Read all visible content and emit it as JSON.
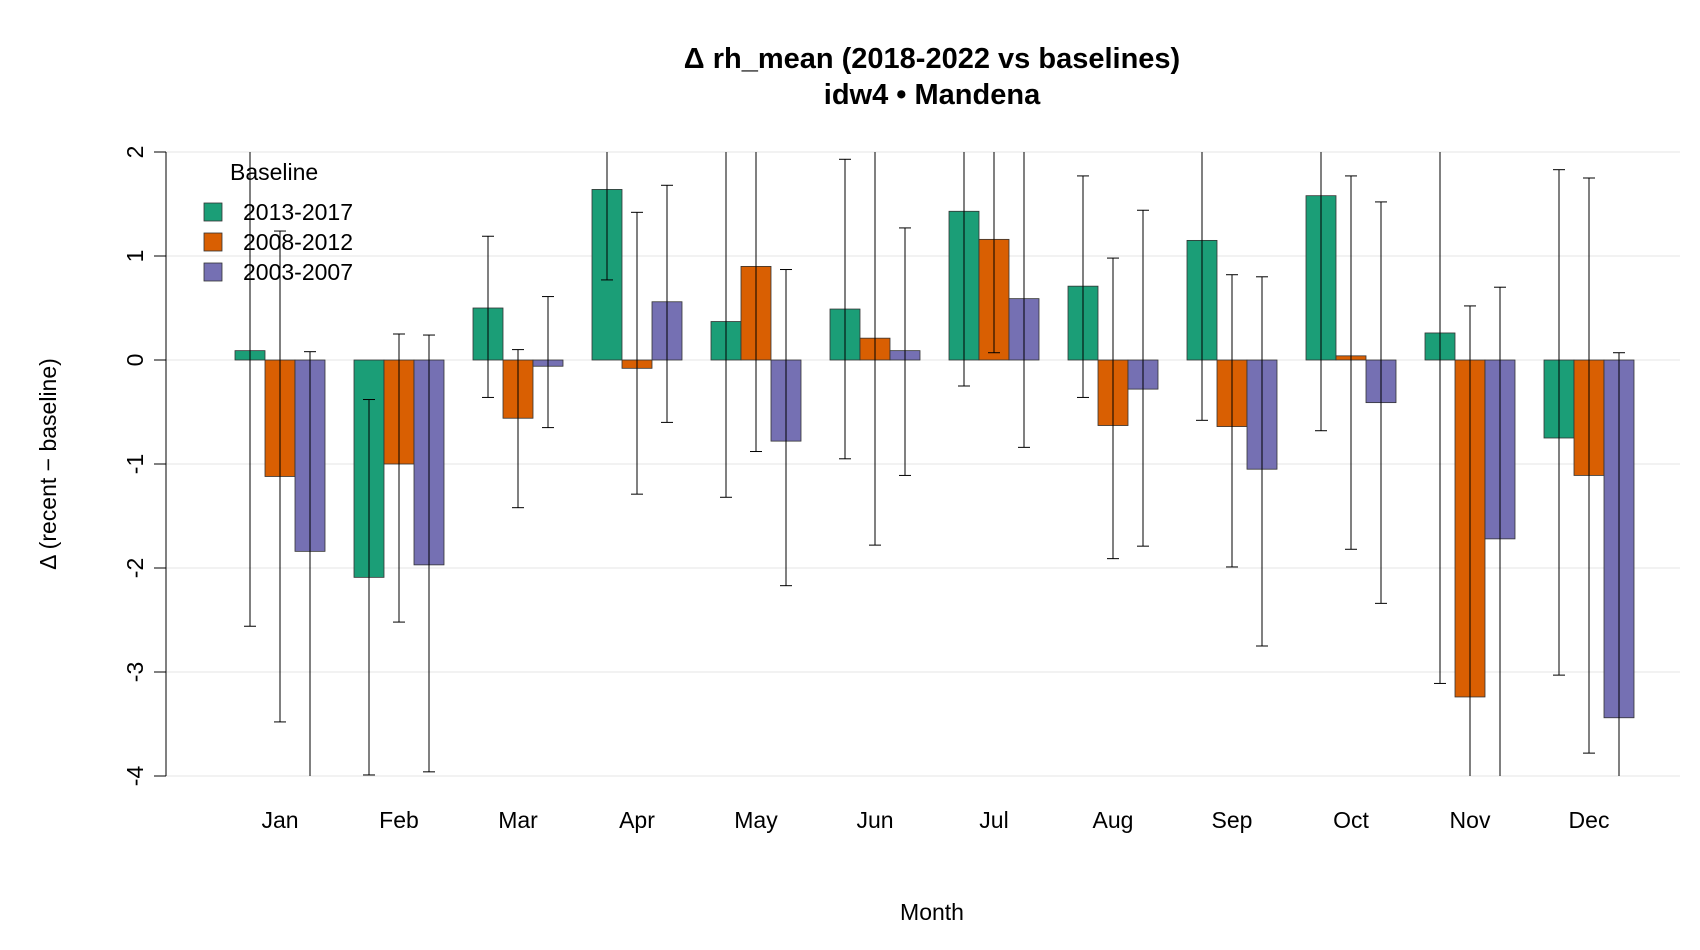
{
  "chart_data": {
    "type": "bar",
    "title": "Δ rh_mean (2018-2022 vs baselines)",
    "subtitle": "idw4 • Mandena",
    "xlabel": "Month",
    "ylabel": "Δ (recent − baseline)",
    "ylim": [
      -4,
      2
    ],
    "yticks": [
      -4,
      -3,
      -2,
      -1,
      0,
      1,
      2
    ],
    "grid": true,
    "legend": {
      "title": "Baseline",
      "position": "top-left"
    },
    "categories": [
      "Jan",
      "Feb",
      "Mar",
      "Apr",
      "May",
      "Jun",
      "Jul",
      "Aug",
      "Sep",
      "Oct",
      "Nov",
      "Dec"
    ],
    "series": [
      {
        "name": "2013-2017",
        "color": "#1b9e77",
        "values": [
          0.09,
          -2.09,
          0.5,
          1.64,
          0.37,
          0.49,
          1.43,
          0.71,
          1.15,
          1.58,
          0.26,
          -0.75
        ],
        "err_low": [
          -2.56,
          -3.99,
          -0.36,
          0.77,
          -1.32,
          -0.95,
          -0.25,
          -0.36,
          -0.58,
          -0.68,
          -3.11,
          -3.03
        ],
        "err_high": [
          2.75,
          -0.38,
          1.19,
          2.5,
          2.07,
          1.93,
          3.11,
          1.77,
          2.88,
          3.84,
          3.63,
          1.83
        ]
      },
      {
        "name": "2008-2012",
        "color": "#d95f02",
        "values": [
          -1.12,
          -1.0,
          -0.56,
          -0.08,
          0.9,
          0.21,
          1.16,
          -0.63,
          -0.64,
          0.04,
          -3.24,
          -1.11
        ],
        "err_low": [
          -3.48,
          -2.52,
          -1.42,
          -1.29,
          -0.88,
          -1.78,
          0.07,
          -1.91,
          -1.99,
          -1.82,
          -6.99,
          -3.78
        ],
        "err_high": [
          1.24,
          0.25,
          0.1,
          1.42,
          2.68,
          2.2,
          2.25,
          0.98,
          0.82,
          1.77,
          0.52,
          1.75
        ]
      },
      {
        "name": "2003-2007",
        "color": "#7570b3",
        "values": [
          -1.84,
          -1.97,
          -0.06,
          0.56,
          -0.78,
          0.09,
          0.59,
          -0.28,
          -1.05,
          -0.41,
          -1.72,
          -3.44
        ],
        "err_low": [
          -5.2,
          -3.96,
          -0.65,
          -0.6,
          -2.17,
          -1.11,
          -0.84,
          -1.79,
          -2.75,
          -2.34,
          -5.5,
          -7.0
        ],
        "err_high": [
          0.08,
          0.24,
          0.61,
          1.68,
          0.87,
          1.27,
          2.01,
          1.44,
          0.8,
          1.52,
          0.7,
          0.07
        ]
      }
    ]
  }
}
